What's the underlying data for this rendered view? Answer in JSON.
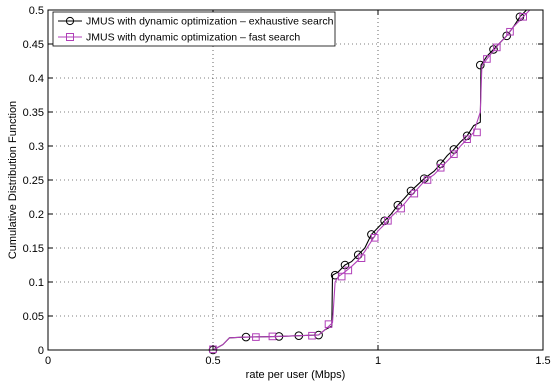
{
  "chart_data": {
    "type": "line",
    "title": "",
    "xlabel": "rate per user (Mbps)",
    "ylabel": "Cumulative Distribution Function",
    "xlim": [
      0,
      1.5
    ],
    "ylim": [
      0,
      0.5
    ],
    "x_ticks": [
      "0",
      "0.5",
      "1",
      "1.5"
    ],
    "y_ticks": [
      "0",
      "0.05",
      "0.1",
      "0.15",
      "0.2",
      "0.25",
      "0.3",
      "0.35",
      "0.4",
      "0.45",
      "0.5"
    ],
    "grid": true,
    "legend_position": "top-left",
    "series": [
      {
        "name": "JMUS with dynamic optimization – exhaustive  search",
        "color": "#000000",
        "marker": "circle",
        "points": [
          [
            0.5,
            0.0
          ],
          [
            0.53,
            0.008
          ],
          [
            0.55,
            0.018
          ],
          [
            0.6,
            0.019
          ],
          [
            0.7,
            0.02
          ],
          [
            0.76,
            0.021
          ],
          [
            0.82,
            0.022
          ],
          [
            0.84,
            0.03
          ],
          [
            0.86,
            0.035
          ],
          [
            0.862,
            0.11
          ],
          [
            0.88,
            0.115
          ],
          [
            0.9,
            0.125
          ],
          [
            0.92,
            0.13
          ],
          [
            0.94,
            0.14
          ],
          [
            0.96,
            0.15
          ],
          [
            0.98,
            0.17
          ],
          [
            1.0,
            0.18
          ],
          [
            1.02,
            0.19
          ],
          [
            1.04,
            0.2
          ],
          [
            1.06,
            0.213
          ],
          [
            1.08,
            0.223
          ],
          [
            1.1,
            0.234
          ],
          [
            1.12,
            0.243
          ],
          [
            1.14,
            0.252
          ],
          [
            1.17,
            0.263
          ],
          [
            1.19,
            0.274
          ],
          [
            1.21,
            0.286
          ],
          [
            1.23,
            0.295
          ],
          [
            1.25,
            0.306
          ],
          [
            1.27,
            0.315
          ],
          [
            1.29,
            0.33
          ],
          [
            1.31,
            0.335
          ],
          [
            1.312,
            0.419
          ],
          [
            1.33,
            0.432
          ],
          [
            1.35,
            0.442
          ],
          [
            1.37,
            0.452
          ],
          [
            1.39,
            0.462
          ],
          [
            1.41,
            0.475
          ],
          [
            1.43,
            0.49
          ],
          [
            1.45,
            0.5
          ]
        ],
        "markers_at": [
          [
            0.5,
            0.0
          ],
          [
            0.6,
            0.019
          ],
          [
            0.7,
            0.02
          ],
          [
            0.76,
            0.021
          ],
          [
            0.82,
            0.022
          ],
          [
            0.87,
            0.11
          ],
          [
            0.9,
            0.125
          ],
          [
            0.94,
            0.14
          ],
          [
            0.98,
            0.17
          ],
          [
            1.02,
            0.19
          ],
          [
            1.06,
            0.213
          ],
          [
            1.1,
            0.234
          ],
          [
            1.14,
            0.252
          ],
          [
            1.19,
            0.274
          ],
          [
            1.23,
            0.295
          ],
          [
            1.27,
            0.315
          ],
          [
            1.31,
            0.419
          ],
          [
            1.35,
            0.442
          ],
          [
            1.39,
            0.462
          ],
          [
            1.43,
            0.49
          ]
        ]
      },
      {
        "name": "JMUS with dynamic optimization – fast search",
        "color": "#b040b8",
        "marker": "square",
        "points": [
          [
            0.5,
            0.0
          ],
          [
            0.53,
            0.008
          ],
          [
            0.55,
            0.018
          ],
          [
            0.6,
            0.019
          ],
          [
            0.7,
            0.02
          ],
          [
            0.76,
            0.021
          ],
          [
            0.82,
            0.022
          ],
          [
            0.84,
            0.03
          ],
          [
            0.862,
            0.04
          ],
          [
            0.87,
            0.1
          ],
          [
            0.88,
            0.108
          ],
          [
            0.9,
            0.115
          ],
          [
            0.92,
            0.123
          ],
          [
            0.94,
            0.132
          ],
          [
            0.96,
            0.145
          ],
          [
            0.98,
            0.16
          ],
          [
            1.0,
            0.175
          ],
          [
            1.02,
            0.185
          ],
          [
            1.04,
            0.196
          ],
          [
            1.06,
            0.205
          ],
          [
            1.08,
            0.215
          ],
          [
            1.1,
            0.227
          ],
          [
            1.12,
            0.237
          ],
          [
            1.14,
            0.248
          ],
          [
            1.17,
            0.258
          ],
          [
            1.19,
            0.268
          ],
          [
            1.21,
            0.278
          ],
          [
            1.23,
            0.288
          ],
          [
            1.25,
            0.3
          ],
          [
            1.27,
            0.31
          ],
          [
            1.29,
            0.32
          ],
          [
            1.31,
            0.35
          ],
          [
            1.315,
            0.418
          ],
          [
            1.33,
            0.428
          ],
          [
            1.35,
            0.44
          ],
          [
            1.37,
            0.452
          ],
          [
            1.39,
            0.462
          ],
          [
            1.41,
            0.475
          ],
          [
            1.43,
            0.485
          ],
          [
            1.45,
            0.495
          ],
          [
            1.46,
            0.5
          ]
        ],
        "markers_at": [
          [
            0.5,
            0.001
          ],
          [
            0.63,
            0.019
          ],
          [
            0.68,
            0.02
          ],
          [
            0.8,
            0.021
          ],
          [
            0.85,
            0.038
          ],
          [
            0.89,
            0.108
          ],
          [
            0.91,
            0.117
          ],
          [
            0.95,
            0.135
          ],
          [
            0.99,
            0.165
          ],
          [
            1.03,
            0.19
          ],
          [
            1.07,
            0.208
          ],
          [
            1.11,
            0.23
          ],
          [
            1.15,
            0.25
          ],
          [
            1.19,
            0.268
          ],
          [
            1.23,
            0.288
          ],
          [
            1.27,
            0.31
          ],
          [
            1.3,
            0.32
          ],
          [
            1.33,
            0.428
          ],
          [
            1.36,
            0.445
          ],
          [
            1.4,
            0.468
          ],
          [
            1.44,
            0.49
          ]
        ]
      }
    ]
  }
}
